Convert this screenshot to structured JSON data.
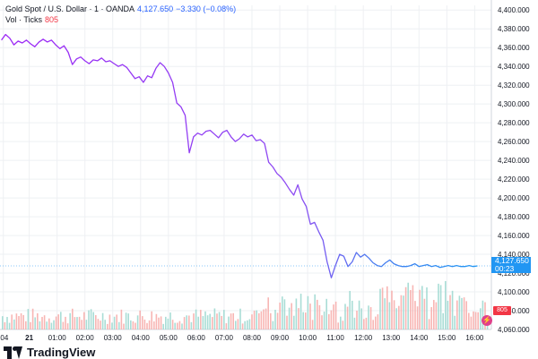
{
  "legend": {
    "symbol": "Gold Spot / U.S. Dollar · 1 · OANDA",
    "last": "4,127.650",
    "change": "−3.330 (−0.08%)",
    "vol_label": "Vol · Ticks",
    "vol_value": "805"
  },
  "price_tag": {
    "value": "4,127.650",
    "countdown": "00:23"
  },
  "vol_tag": "805",
  "brand": {
    "name": "TradingView"
  },
  "colors": {
    "line_start": "#9c27f5",
    "line_end": "#2196f3",
    "vol_up": "#9ad7cf",
    "vol_down": "#f7a9a7",
    "grid": "#eef0f3"
  },
  "chart_data": {
    "type": "line",
    "title": "Gold Spot / U.S. Dollar · 1 · OANDA",
    "y_ticks": [
      "4,400.000",
      "4,380.000",
      "4,360.000",
      "4,340.000",
      "4,320.000",
      "4,300.000",
      "4,280.000",
      "4,260.000",
      "4,240.000",
      "4,220.000",
      "4,200.000",
      "4,180.000",
      "4,160.000",
      "4,140.000",
      "4,120.000",
      "4,100.000",
      "4,080.000",
      "4,060.000"
    ],
    "ylim": [
      4060,
      4405
    ],
    "x_ticks": [
      ":04",
      "21",
      "01:00",
      "02:00",
      "03:00",
      "04:00",
      "05:00",
      "06:00",
      "07:00",
      "08:00",
      "09:00",
      "10:00",
      "11:00",
      "12:00",
      "13:00",
      "14:00",
      "15:00",
      "16:00"
    ],
    "x_tick_hours": [
      -1.93,
      -1.0,
      0,
      1,
      2,
      3,
      4,
      5,
      6,
      7,
      8,
      9,
      10,
      11,
      12,
      13,
      14,
      15
    ],
    "xlim": [
      -2.05,
      15.6
    ],
    "series": [
      {
        "x": [
          -2.0,
          -1.85,
          -1.7,
          -1.55,
          -1.4,
          -1.25,
          -1.1,
          -0.95,
          -0.8,
          -0.65,
          -0.5,
          -0.35,
          -0.2,
          -0.05,
          0.1,
          0.25,
          0.4,
          0.55,
          0.7,
          0.85,
          1.0,
          1.15,
          1.3,
          1.45,
          1.6,
          1.75,
          1.9,
          2.05,
          2.2,
          2.35,
          2.5,
          2.65,
          2.8,
          2.95,
          3.1,
          3.25,
          3.4,
          3.55,
          3.7,
          3.85,
          4.0,
          4.15,
          4.3,
          4.45,
          4.6,
          4.75,
          4.9,
          5.05,
          5.2,
          5.35,
          5.5,
          5.65,
          5.8,
          5.95,
          6.1,
          6.25,
          6.4,
          6.55,
          6.7,
          6.85,
          7.0,
          7.15,
          7.3,
          7.45,
          7.6,
          7.75,
          7.9,
          8.05,
          8.2,
          8.35,
          8.5,
          8.65,
          8.8,
          8.95,
          9.1,
          9.25,
          9.4,
          9.55,
          9.7,
          9.85,
          10.0,
          10.15,
          10.3,
          10.45,
          10.6,
          10.75,
          10.9,
          11.05,
          11.2,
          11.35,
          11.5,
          11.65,
          11.8,
          11.95,
          12.1,
          12.25,
          12.4,
          12.55,
          12.7,
          12.85,
          13.0,
          13.15,
          13.3,
          13.45,
          13.6,
          13.75,
          13.9,
          14.05,
          14.2,
          14.35,
          14.5,
          14.65,
          14.8,
          14.95,
          15.1
        ],
        "y": [
          4368,
          4374,
          4370,
          4363,
          4367,
          4365,
          4368,
          4364,
          4361,
          4366,
          4369,
          4366,
          4368,
          4363,
          4359,
          4362,
          4355,
          4342,
          4348,
          4350,
          4346,
          4343,
          4347,
          4346,
          4349,
          4345,
          4346,
          4343,
          4340,
          4342,
          4339,
          4333,
          4327,
          4329,
          4323,
          4330,
          4328,
          4338,
          4344,
          4340,
          4333,
          4323,
          4301,
          4297,
          4288,
          4248,
          4265,
          4269,
          4267,
          4271,
          4272,
          4268,
          4264,
          4270,
          4272,
          4265,
          4260,
          4263,
          4268,
          4265,
          4267,
          4261,
          4262,
          4258,
          4238,
          4233,
          4226,
          4222,
          4216,
          4209,
          4203,
          4214,
          4199,
          4191,
          4172,
          4174,
          4164,
          4155,
          4132,
          4115,
          4128,
          4140,
          4138,
          4127,
          4132,
          4142,
          4137,
          4140,
          4136,
          4131,
          4128,
          4127,
          4131,
          4134,
          4130,
          4128,
          4127,
          4127,
          4128,
          4130,
          4127,
          4128,
          4129,
          4127,
          4128,
          4126,
          4127,
          4128,
          4127,
          4128,
          4127,
          4127,
          4128,
          4127,
          4127.65
        ]
      }
    ],
    "volume": {
      "note": "Vol · Ticks",
      "last": 805
    },
    "grid": true
  }
}
